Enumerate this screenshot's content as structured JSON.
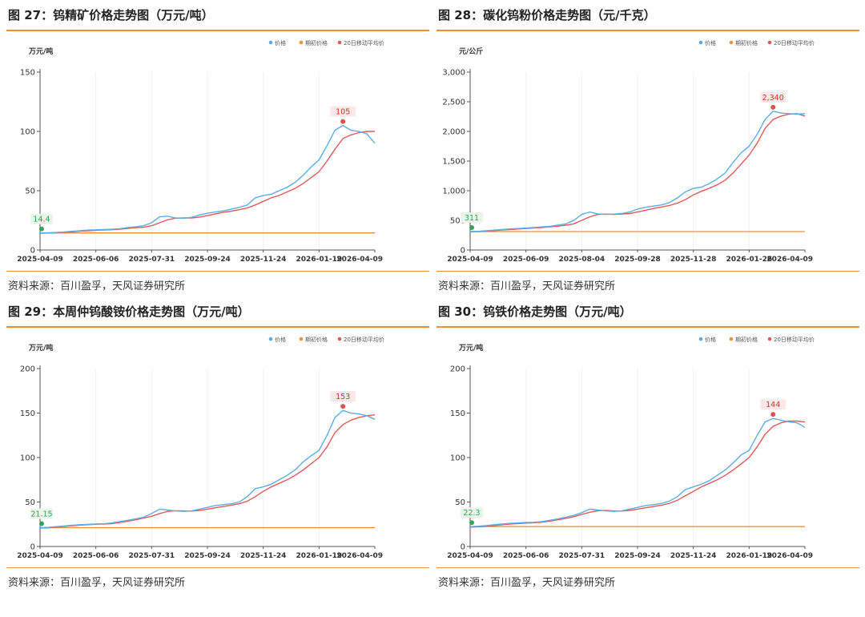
{
  "panels": [
    {
      "title": "图 27：钨精矿价格走势图（万元/吨）",
      "source": "资料来源：百川盈孚，天风证券研究所",
      "chart_data": {
        "type": "line",
        "ylabel": "万元/吨",
        "ylim": [
          0,
          150
        ],
        "yticks": [
          0,
          50,
          100,
          150
        ],
        "xticklabels": [
          "2025-04-09",
          "2025-06-06",
          "2025-07-31",
          "2025-09-24",
          "2025-11-24",
          "2026-01-19",
          "2026-04-09"
        ],
        "legend": [
          "价格",
          "期初价格",
          "20日移动平均价"
        ],
        "legend_position": "top-right",
        "colors": {
          "price": "#5dade2",
          "initial": "#e8923a",
          "ma20": "#e05a5a",
          "max_marker": "#d9534f",
          "start_marker": "#3aa05a"
        },
        "series": [
          {
            "name": "价格",
            "values": [
              14.4,
              14.5,
              14.8,
              15.2,
              15.8,
              16.2,
              16.8,
              17,
              17.2,
              17.5,
              18,
              19,
              19.5,
              20.5,
              23,
              28,
              28.5,
              27,
              26.8,
              27.5,
              29.5,
              31,
              32,
              33,
              34.5,
              36,
              38,
              44,
              46,
              47,
              50,
              53,
              57,
              63,
              70,
              76,
              88,
              101,
              105,
              101,
              100,
              98,
              90
            ]
          },
          {
            "name": "期初价格",
            "values": [
              14.4,
              14.4
            ]
          },
          {
            "name": "20日移动平均价",
            "values": [
              14.2,
              14.3,
              14.5,
              14.8,
              15.3,
              15.8,
              16.2,
              16.6,
              16.9,
              17.1,
              17.5,
              18.2,
              18.8,
              19.2,
              20.5,
              23,
              25.5,
              26.8,
              27,
              27,
              27.8,
              29,
              30.5,
              31.8,
              32.8,
              34,
              35.5,
              38,
              41,
              44,
              46,
              49,
              52,
              56,
              61,
              66,
              75,
              85,
              94,
              97,
              99,
              100,
              100
            ]
          }
        ],
        "annotations": [
          {
            "label": "14.4"
          },
          {
            "label": "105"
          }
        ]
      }
    },
    {
      "title": "图 28：碳化钨粉价格走势图（元/千克）",
      "source": "资料来源：百川盈孚，天风证券研究所",
      "chart_data": {
        "type": "line",
        "ylabel": "元/公斤",
        "ylim": [
          0,
          3000
        ],
        "yticks": [
          0,
          500,
          1000,
          1500,
          2000,
          2500,
          3000
        ],
        "ytick_labels": [
          "0",
          "500",
          "1,000",
          "1,500",
          "2,000",
          "2,500",
          "3,000"
        ],
        "xticklabels": [
          "2025-04-09",
          "2025-06-09",
          "2025-08-04",
          "2025-09-28",
          "2025-11-28",
          "2026-01-26",
          "2026-04-09"
        ],
        "legend": [
          "价格",
          "期初价格",
          "20日移动平均价"
        ],
        "legend_position": "top-right",
        "colors": {
          "price": "#5dade2",
          "initial": "#e8923a",
          "ma20": "#e05a5a",
          "max_marker": "#d9534f",
          "start_marker": "#3aa05a"
        },
        "series": [
          {
            "name": "价格",
            "values": [
              311,
              315,
              325,
              335,
              345,
              355,
              362,
              370,
              380,
              390,
              400,
              420,
              440,
              500,
              600,
              640,
              610,
              600,
              605,
              615,
              640,
              690,
              720,
              740,
              760,
              800,
              880,
              980,
              1040,
              1060,
              1120,
              1200,
              1300,
              1480,
              1640,
              1750,
              1950,
              2200,
              2340,
              2310,
              2300,
              2290,
              2300
            ]
          },
          {
            "name": "期初价格",
            "values": [
              311,
              311
            ]
          },
          {
            "name": "20日移动平均价",
            "values": [
              305,
              310,
              318,
              326,
              336,
              345,
              354,
              362,
              370,
              380,
              390,
              402,
              418,
              440,
              500,
              560,
              600,
              605,
              600,
              605,
              615,
              640,
              670,
              700,
              725,
              750,
              790,
              850,
              930,
              990,
              1040,
              1100,
              1180,
              1300,
              1450,
              1600,
              1800,
              2050,
              2200,
              2260,
              2290,
              2300,
              2260
            ]
          }
        ],
        "annotations": [
          {
            "label": "311"
          },
          {
            "label": "2,340"
          }
        ]
      }
    },
    {
      "title": "图 29：本周仲钨酸铵价格走势图（万元/吨）",
      "source": "资料来源：百川盈孚，天风证券研究所",
      "chart_data": {
        "type": "line",
        "ylabel": "万元/吨",
        "ylim": [
          0,
          200
        ],
        "yticks": [
          0,
          50,
          100,
          150,
          200
        ],
        "xticklabels": [
          "2025-04-09",
          "2025-06-06",
          "2025-07-31",
          "2025-09-24",
          "2025-11-24",
          "2026-01-19",
          "2026-04-09"
        ],
        "legend": [
          "价格",
          "期初价格",
          "20日移动平均价"
        ],
        "legend_position": "top-right",
        "colors": {
          "price": "#5dade2",
          "initial": "#e8923a",
          "ma20": "#e05a5a",
          "max_marker": "#d9534f",
          "start_marker": "#3aa05a"
        },
        "series": [
          {
            "name": "价格",
            "values": [
              21.15,
              21.5,
              22.3,
              23,
              23.8,
              24.5,
              25,
              25.3,
              25.5,
              26.5,
              28,
              29.5,
              31,
              33,
              37,
              42,
              41,
              40,
              39.5,
              40,
              42,
              44,
              46,
              47,
              48,
              50,
              56,
              65,
              67,
              70,
              75,
              80,
              86,
              95,
              102,
              108,
              125,
              145,
              153,
              150,
              149,
              147,
              143
            ]
          },
          {
            "name": "期初价格",
            "values": [
              21.15,
              21.15
            ]
          },
          {
            "name": "20日移动平均价",
            "values": [
              20.8,
              21,
              21.8,
              22.5,
              23.2,
              24,
              24.5,
              25,
              25.2,
              25.8,
              27,
              28.5,
              30,
              32,
              34,
              37,
              39.5,
              40.2,
              40,
              39.8,
              40.5,
              42,
              43.5,
              45,
              46.5,
              48,
              51,
              56,
              62,
              67,
              71,
              75,
              80,
              86,
              93,
              100,
              112,
              128,
              137,
              142,
              145,
              147,
              148
            ]
          }
        ],
        "annotations": [
          {
            "label": "21.15"
          },
          {
            "label": "153"
          }
        ]
      }
    },
    {
      "title": "图 30：钨铁价格走势图（万元/吨）",
      "source": "资料来源：百川盈孚，天风证券研究所",
      "chart_data": {
        "type": "line",
        "ylabel": "万元/吨",
        "ylim": [
          0,
          200
        ],
        "yticks": [
          0,
          50,
          100,
          150,
          200
        ],
        "xticklabels": [
          "2025-04-09",
          "2025-06-06",
          "2025-07-31",
          "2025-09-24",
          "2025-11-24",
          "2026-01-19",
          "2026-04-09"
        ],
        "legend": [
          "价格",
          "期初价格",
          "20日移动平均价"
        ],
        "legend_position": "top-right",
        "colors": {
          "price": "#5dade2",
          "initial": "#e8923a",
          "ma20": "#e05a5a",
          "max_marker": "#d9534f",
          "start_marker": "#3aa05a"
        },
        "series": [
          {
            "name": "价格",
            "values": [
              22.3,
              22.8,
              23.5,
              24.5,
              25.2,
              26,
              26.5,
              27,
              27.2,
              28,
              29.5,
              31,
              33,
              35,
              38,
              42,
              41,
              40,
              39.5,
              40,
              42,
              44,
              46,
              47,
              48.5,
              51,
              56,
              64,
              67,
              70,
              74,
              80,
              86,
              94,
              103,
              108,
              125,
              140,
              144,
              142,
              140,
              139,
              134
            ]
          },
          {
            "name": "期初价格",
            "values": [
              22.3,
              22.3
            ]
          },
          {
            "name": "20日移动平均价",
            "values": [
              21.8,
              22.2,
              22.8,
              23.6,
              24.4,
              25.2,
              25.8,
              26.3,
              26.7,
              27.3,
              28.5,
              30,
              31.5,
              33.5,
              36,
              38.5,
              40.2,
              40.5,
              40,
              39.8,
              40.5,
              42,
              43.5,
              45,
              46.5,
              48.5,
              52,
              57,
              62,
              67,
              71,
              75,
              80,
              86,
              93,
              100,
              112,
              126,
              135,
              139,
              141,
              141,
              140
            ]
          }
        ],
        "annotations": [
          {
            "label": "22.3"
          },
          {
            "label": "144"
          }
        ]
      }
    }
  ]
}
